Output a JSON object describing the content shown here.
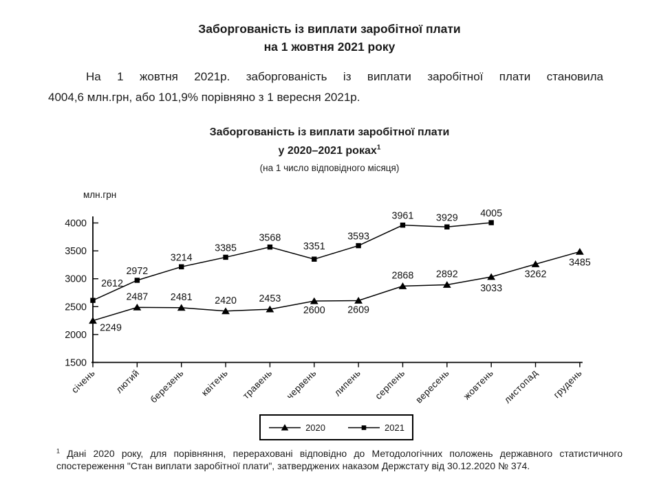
{
  "document": {
    "title_line1": "Заборгованість із виплати заробітної плати",
    "title_line2": "на 1 жовтня 2021 року",
    "paragraph_line1": "На 1 жовтня 2021р. заборгованість із виплати заробітної плати становила",
    "paragraph_line2": "4004,6 млн.грн, або 101,9% порівняно з 1 вересня 2021р."
  },
  "chart": {
    "title_line1": "Заборгованість із виплати заробітної плати",
    "title_line2_text": "у 2020–2021 роках",
    "title_line2_superscript": "1",
    "subtitle": "(на 1 число відповідного місяця)"
  },
  "chart_data": {
    "type": "line",
    "title": "Заборгованість із виплати заробітної плати у 2020–2021 роках (на 1 число відповідного місяця)",
    "ylabel": "млн.грн",
    "xlabel": "",
    "ylim": [
      1500,
      4000
    ],
    "ytick_step": 500,
    "grid": false,
    "legend_position": "bottom",
    "categories": [
      "січень",
      "лютий",
      "березень",
      "квітень",
      "травень",
      "червень",
      "липень",
      "серпень",
      "вересень",
      "жовтень",
      "листопад",
      "грудень"
    ],
    "series": [
      {
        "name": "2020",
        "marker": "triangle",
        "color": "#000000",
        "values": [
          2249,
          2487,
          2481,
          2420,
          2453,
          2600,
          2609,
          2868,
          2892,
          3033,
          3262,
          3485
        ],
        "label_offsets": [
          [
            26,
            15
          ],
          [
            0,
            -11
          ],
          [
            0,
            -11
          ],
          [
            0,
            -11
          ],
          [
            0,
            -11
          ],
          [
            0,
            18
          ],
          [
            0,
            18
          ],
          [
            0,
            -11
          ],
          [
            0,
            -11
          ],
          [
            0,
            21
          ],
          [
            0,
            19
          ],
          [
            0,
            20
          ]
        ]
      },
      {
        "name": "2021",
        "marker": "square",
        "color": "#000000",
        "values": [
          2612,
          2972,
          3214,
          3385,
          3568,
          3351,
          3593,
          3961,
          3929,
          4005
        ],
        "label_offsets": [
          [
            28,
            -20
          ],
          [
            0,
            -9
          ],
          [
            0,
            -9
          ],
          [
            0,
            -9
          ],
          [
            0,
            -9
          ],
          [
            0,
            -14
          ],
          [
            0,
            -9
          ],
          [
            0,
            -9
          ],
          [
            0,
            -9
          ],
          [
            0,
            -9
          ]
        ]
      }
    ]
  },
  "footnote": {
    "marker": "1",
    "line1": "Дані 2020 року, для порівняння, перераховані відповідно до Методологічних положень  державного статистичного",
    "line2": "спостереження \"Стан виплати заробітної плати\", затверджених наказом Держстату від 30.12.2020 № 374."
  }
}
